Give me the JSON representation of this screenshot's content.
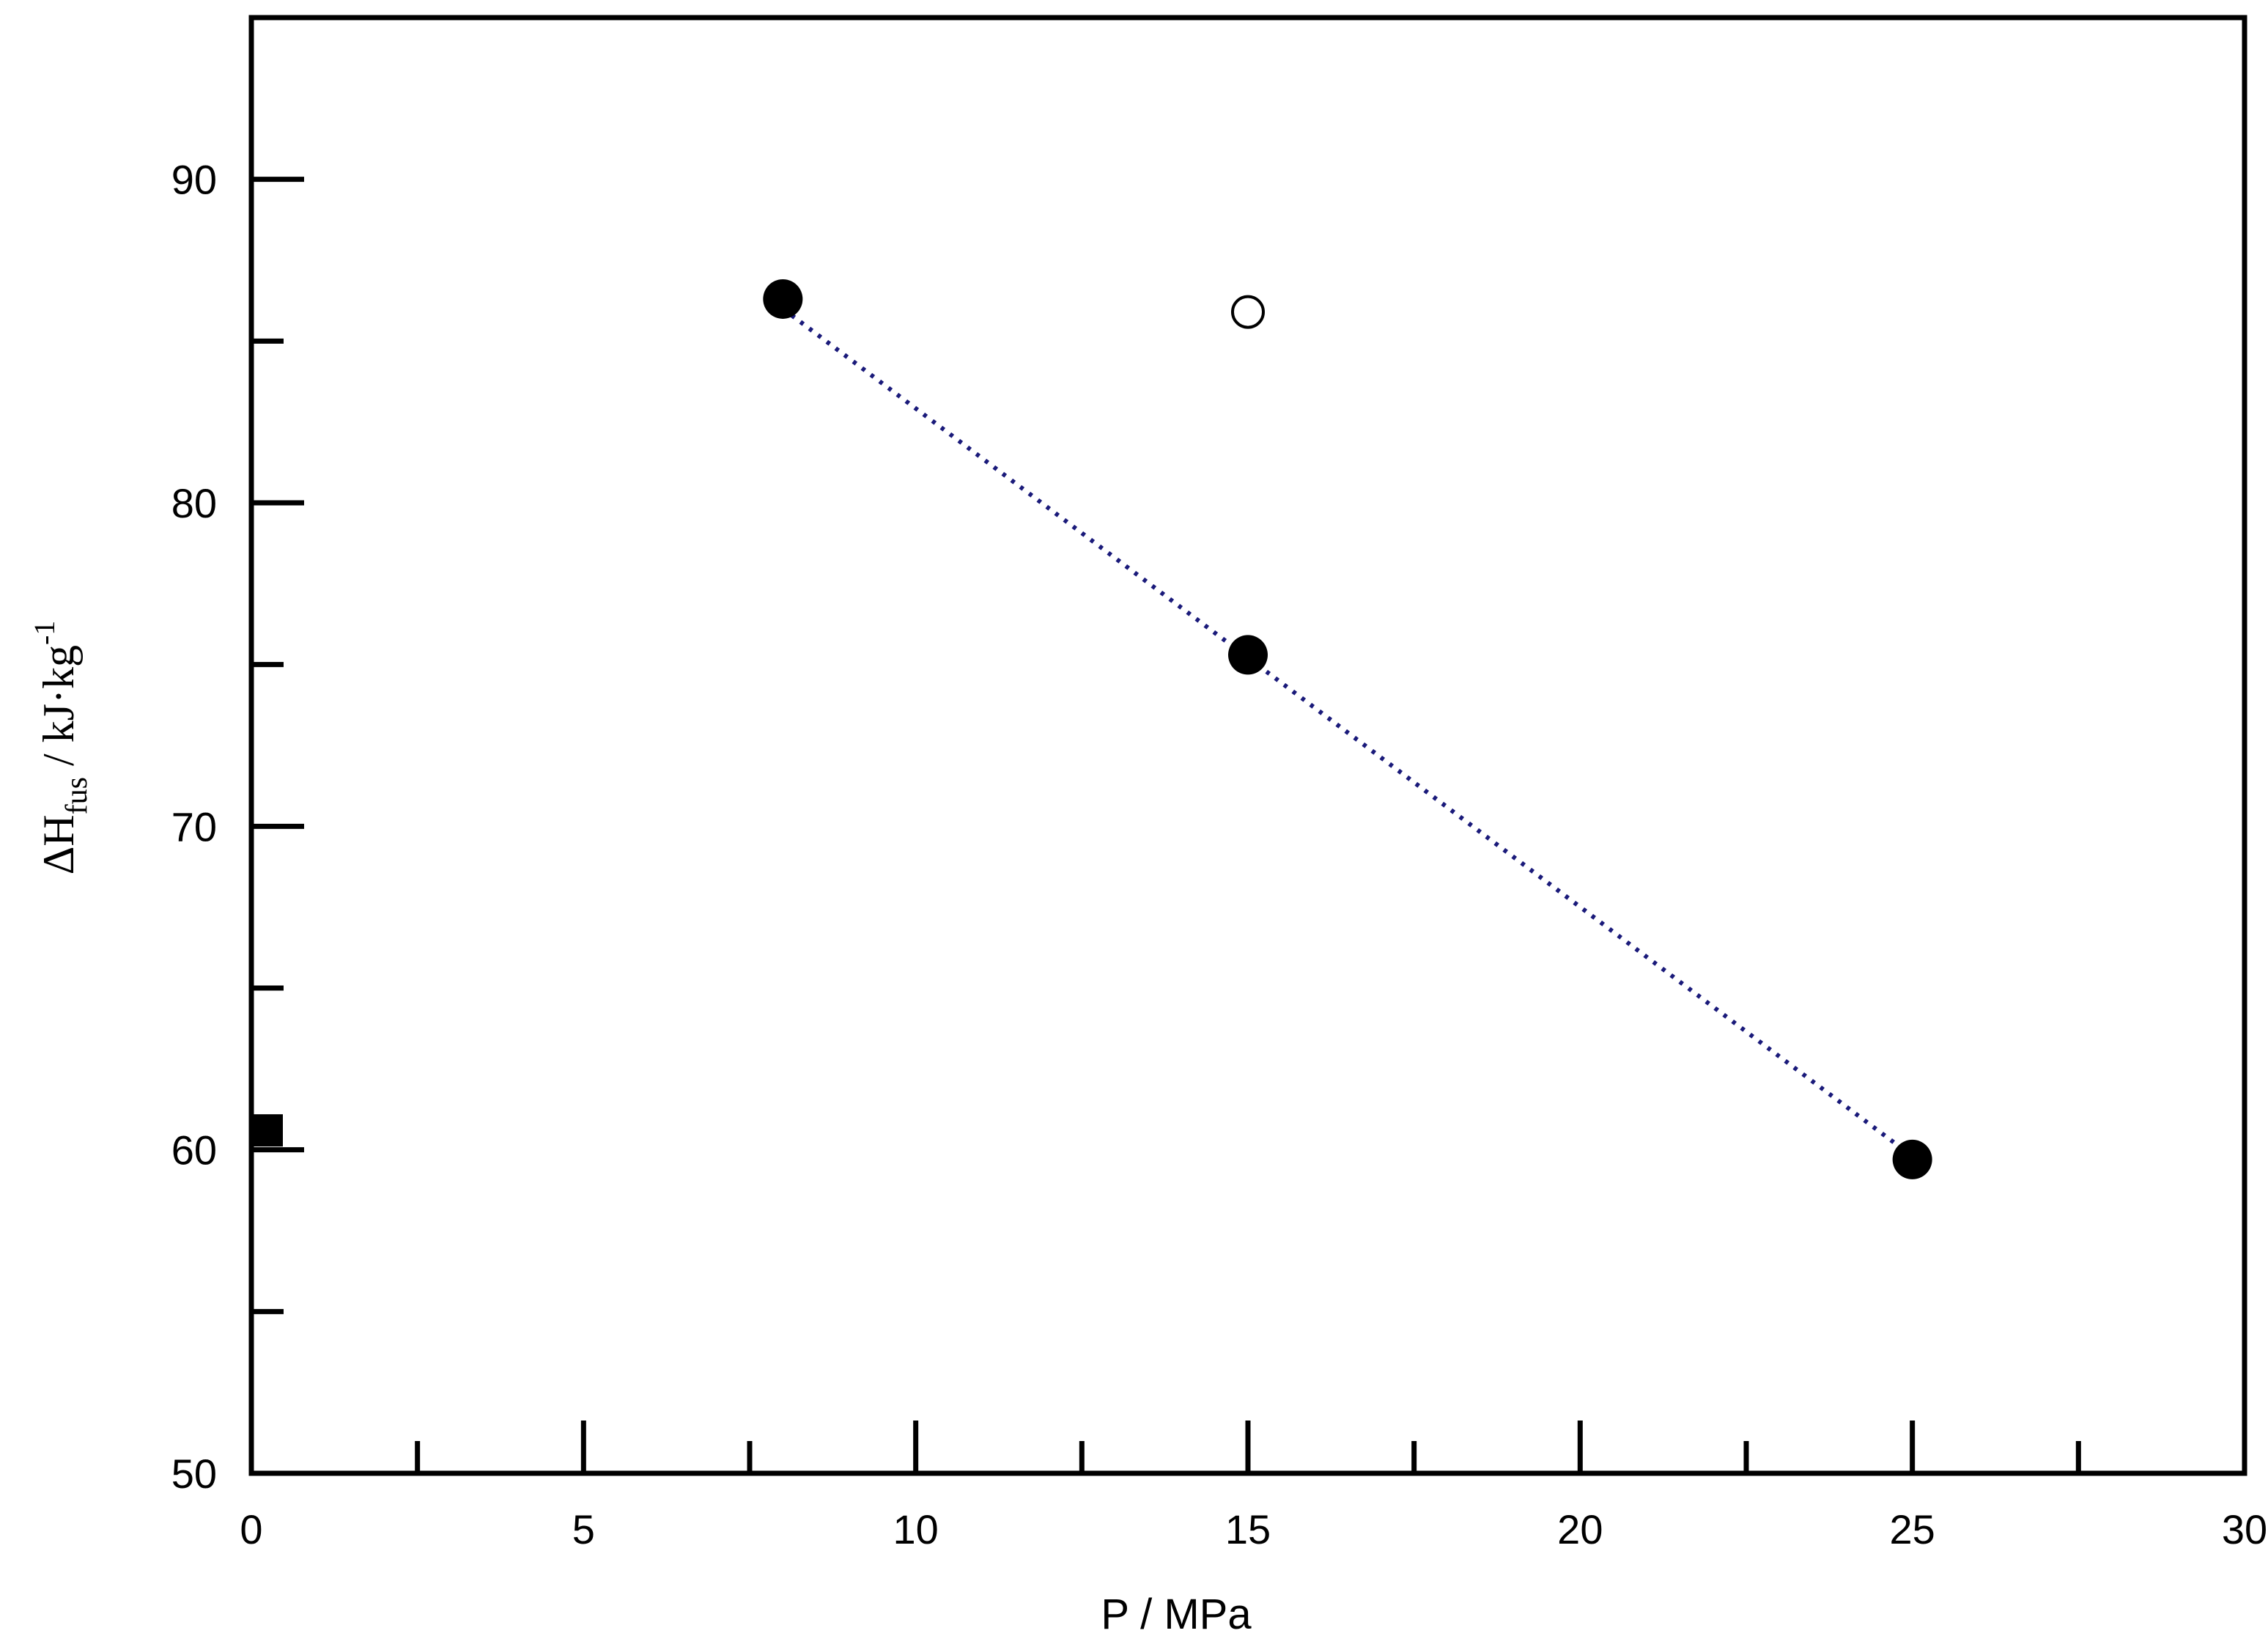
{
  "chart_data": {
    "type": "scatter",
    "xlabel": "P / MPa",
    "ylabel": {
      "symbol": "ΔH",
      "subscript": "fus",
      "unit": " / kJ·kg",
      "unit_superscript": "-1"
    },
    "xlim": [
      0,
      30
    ],
    "ylim": [
      50,
      95
    ],
    "x_ticks": [
      0,
      5,
      10,
      15,
      20,
      25,
      30
    ],
    "x_minor_ticks": [
      2.5,
      7.5,
      12.5,
      17.5,
      22.5,
      27.5
    ],
    "y_ticks": [
      50,
      60,
      70,
      80,
      90
    ],
    "y_minor_ticks": [
      55,
      65,
      75,
      85
    ],
    "x_tick_labels": [
      "0",
      "5",
      "10",
      "15",
      "20",
      "25",
      "30"
    ],
    "y_tick_labels": [
      "50",
      "60",
      "70",
      "80",
      "90"
    ],
    "grid": false,
    "series": [
      {
        "marker": "filled-circle",
        "color": "#000000",
        "points": [
          {
            "x": 8,
            "y": 86.3
          },
          {
            "x": 15,
            "y": 75.3
          },
          {
            "x": 25,
            "y": 59.7
          }
        ]
      },
      {
        "marker": "open-circle",
        "color": "#000000",
        "points": [
          {
            "x": 15,
            "y": 85.9
          }
        ]
      },
      {
        "marker": "filled-square",
        "color": "#000000",
        "points": [
          {
            "x": 0,
            "y": 60.6
          }
        ]
      }
    ],
    "fit_line": {
      "style": "dotted",
      "color": "#1a1a7a",
      "x": [
        8,
        25
      ],
      "y": [
        86.0,
        59.8
      ]
    }
  }
}
